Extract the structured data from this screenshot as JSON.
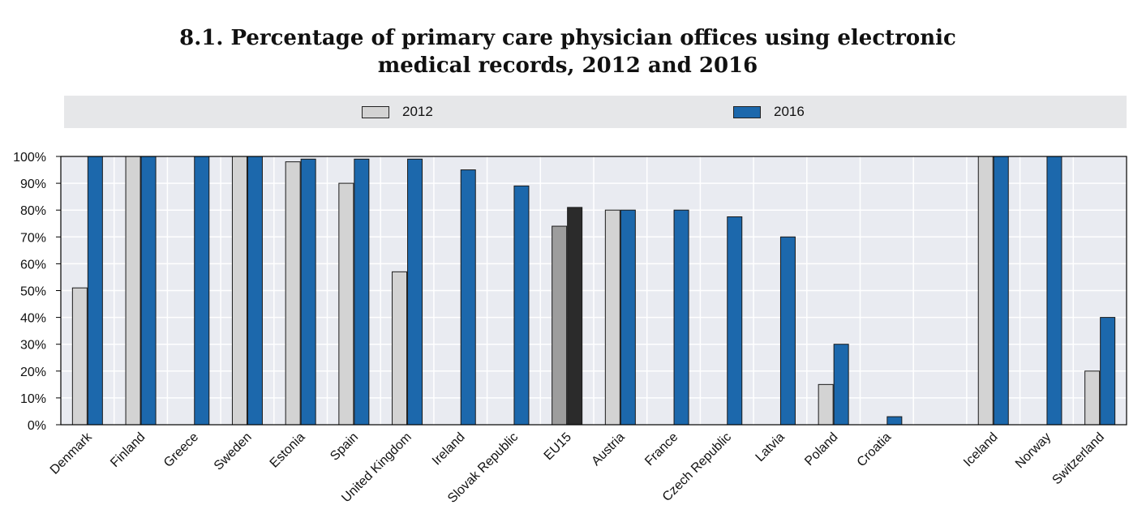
{
  "chart_data": {
    "type": "bar",
    "title_line1": "8.1.  Percentage of primary care physician offices using electronic",
    "title_line2": "medical records, 2012 and 2016",
    "xlabel": "",
    "ylabel": "",
    "ylim": [
      0,
      100
    ],
    "yticks": [
      "0%",
      "10%",
      "20%",
      "30%",
      "40%",
      "50%",
      "60%",
      "70%",
      "80%",
      "90%",
      "100%"
    ],
    "grid": true,
    "legend_position": "top",
    "categories": [
      "Denmark",
      "Finland",
      "Greece",
      "Sweden",
      "Estonia",
      "Spain",
      "United Kingdom",
      "Ireland",
      "Slovak Republic",
      "EU15",
      "Austria",
      "France",
      "Czech Republic",
      "Latvia",
      "Poland",
      "Croatia",
      "",
      "Iceland",
      "Norway",
      "Switzerland"
    ],
    "series": [
      {
        "name": "2012",
        "color": "#d3d3d3",
        "highlight_color": "#9d9d9d",
        "values": [
          51,
          100,
          null,
          100,
          98,
          90,
          57,
          null,
          null,
          74,
          80,
          null,
          null,
          null,
          15,
          null,
          null,
          100,
          null,
          20
        ]
      },
      {
        "name": "2016",
        "color": "#1c68ac",
        "highlight_color": "#2b2b2b",
        "values": [
          100,
          100,
          100,
          100,
          99,
          99,
          99,
          95,
          89,
          81,
          80,
          80,
          77.5,
          70,
          30,
          3,
          null,
          100,
          100,
          40
        ]
      }
    ],
    "highlight_category": "EU15"
  },
  "colors": {
    "plot_bg": "#e9ebf1",
    "grid": "#ffffff",
    "legend_bg": "#e6e7e9"
  }
}
